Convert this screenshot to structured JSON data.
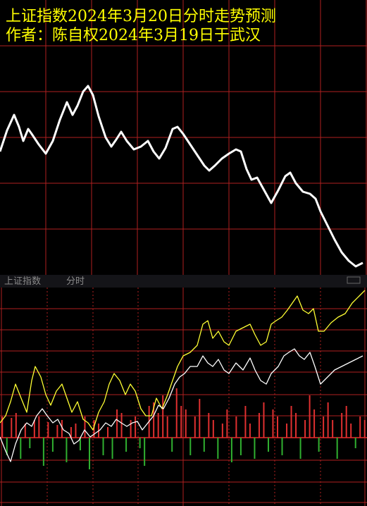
{
  "chart_data": [
    {
      "type": "line",
      "title": "上证指数2024年3月20日分时走势预测",
      "subtitle": "作者：陈自权2024年3月19日于武汉",
      "xlim": [
        0,
        521
      ],
      "ylim": [
        0,
        390
      ],
      "color": "#ffffff",
      "x": [
        0,
        10,
        20,
        27,
        33,
        40,
        45,
        55,
        65,
        75,
        85,
        95,
        103,
        110,
        118,
        125,
        132,
        140,
        150,
        158,
        165,
        172,
        180,
        190,
        200,
        210,
        218,
        226,
        235,
        245,
        252,
        260,
        270,
        280,
        290,
        297,
        305,
        315,
        325,
        335,
        342,
        350,
        357,
        365,
        375,
        385,
        395,
        405,
        412,
        420,
        430,
        440,
        448,
        455,
        465,
        475,
        485,
        495,
        505,
        515
      ],
      "values": [
        175,
        205,
        227,
        210,
        190,
        207,
        200,
        185,
        172,
        190,
        220,
        245,
        227,
        240,
        260,
        268,
        255,
        225,
        195,
        182,
        192,
        203,
        190,
        178,
        182,
        190,
        175,
        165,
        180,
        207,
        210,
        200,
        185,
        170,
        155,
        148,
        155,
        165,
        172,
        178,
        175,
        150,
        135,
        138,
        120,
        102,
        120,
        140,
        145,
        130,
        118,
        115,
        108,
        90,
        70,
        50,
        32,
        20,
        12,
        17
      ]
    },
    {
      "type": "line",
      "title": "上证指数",
      "period": "分时",
      "xlim": [
        0,
        521
      ],
      "ylim": [
        0,
        310
      ],
      "series": [
        {
          "color": "#ffff33",
          "x": [
            0,
            8,
            15,
            22,
            30,
            38,
            45,
            50,
            58,
            65,
            72,
            80,
            88,
            95,
            102,
            110,
            118,
            125,
            132,
            140,
            148,
            155,
            162,
            170,
            178,
            185,
            192,
            200,
            207,
            215,
            222,
            230,
            238,
            245,
            252,
            260,
            270,
            280,
            288,
            295,
            302,
            310,
            318,
            325,
            335,
            345,
            355,
            362,
            370,
            378,
            385,
            392,
            400,
            408,
            415,
            422,
            430,
            438,
            445,
            452,
            460,
            470,
            480,
            490,
            500,
            510,
            518
          ],
          "values": [
            118,
            128,
            148,
            173,
            153,
            133,
            178,
            198,
            183,
            158,
            143,
            163,
            173,
            153,
            133,
            148,
            123,
            118,
            108,
            133,
            148,
            173,
            188,
            178,
            158,
            173,
            163,
            138,
            128,
            128,
            153,
            138,
            158,
            178,
            198,
            213,
            218,
            228,
            258,
            263,
            238,
            248,
            233,
            228,
            248,
            253,
            258,
            243,
            228,
            233,
            258,
            263,
            268,
            278,
            288,
            298,
            278,
            273,
            280,
            248,
            248,
            260,
            268,
            273,
            288,
            298,
            306
          ]
        },
        {
          "color": "#ffffff",
          "x": [
            0,
            8,
            15,
            22,
            30,
            38,
            45,
            52,
            60,
            67,
            75,
            82,
            90,
            98,
            105,
            112,
            120,
            128,
            135,
            142,
            150,
            158,
            165,
            172,
            180,
            188,
            195,
            202,
            210,
            218,
            225,
            232,
            240,
            248,
            255,
            262,
            270,
            280,
            288,
            295,
            302,
            310,
            318,
            325,
            335,
            345,
            355,
            362,
            370,
            378,
            385,
            395,
            403,
            410,
            418,
            425,
            432,
            440,
            447,
            455,
            465,
            475,
            485,
            495,
            505,
            515
          ],
          "values": [
            98,
            78,
            63,
            88,
            108,
            118,
            113,
            128,
            138,
            128,
            118,
            123,
            108,
            103,
            88,
            93,
            108,
            98,
            103,
            108,
            118,
            113,
            123,
            118,
            113,
            118,
            120,
            108,
            118,
            128,
            143,
            138,
            153,
            173,
            183,
            188,
            198,
            198,
            213,
            203,
            198,
            208,
            193,
            188,
            203,
            193,
            210,
            193,
            178,
            173,
            188,
            198,
            213,
            218,
            223,
            213,
            208,
            218,
            198,
            173,
            183,
            193,
            198,
            203,
            208,
            213
          ]
        }
      ],
      "volume": {
        "up_color": "#e03030",
        "down_color": "#30b030",
        "values": [
          30,
          -25,
          28,
          35,
          -30,
          20,
          -15,
          25,
          30,
          -40,
          22,
          -20,
          18,
          25,
          -35,
          15,
          20,
          -18,
          30,
          -45,
          25,
          20,
          -25,
          15,
          -30,
          40,
          35,
          -20,
          25,
          30,
          -15,
          -40,
          45,
          50,
          35,
          60,
          30,
          -20,
          70,
          45,
          40,
          -25,
          30,
          55,
          -20,
          35,
          25,
          -30,
          20,
          40,
          -35,
          30,
          -25,
          45,
          20,
          -30,
          35,
          50,
          -20,
          40,
          30,
          -25,
          20,
          45,
          35,
          -30,
          25,
          60,
          40,
          -20,
          30,
          50,
          25,
          -30,
          35,
          45,
          20,
          -15,
          30,
          25
        ]
      }
    }
  ]
}
